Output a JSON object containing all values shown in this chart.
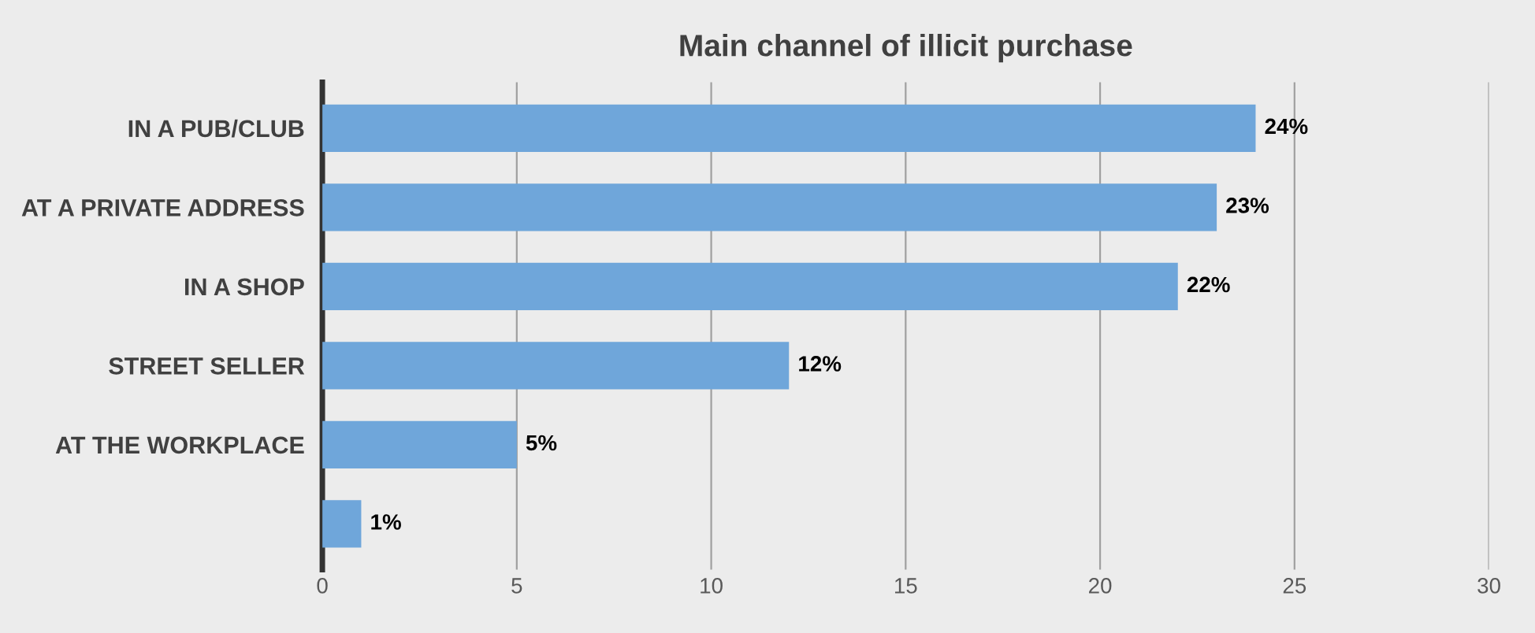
{
  "chart_data": {
    "type": "bar",
    "orientation": "horizontal",
    "title": "Main channel of illicit purchase",
    "categories": [
      "IN A PUB/CLUB",
      "AT A PRIVATE ADDRESS",
      "IN A SHOP",
      "STREET SELLER",
      "AT THE WORKPLACE",
      null
    ],
    "values": [
      24,
      23,
      22,
      12,
      5,
      1
    ],
    "value_labels": [
      "24%",
      "23%",
      "22%",
      "12%",
      "5%",
      "1%"
    ],
    "color": "#6fa6da",
    "xlim": [
      0,
      30
    ],
    "xticks": [
      0,
      5,
      10,
      15,
      20,
      25,
      30
    ],
    "grid": "x",
    "legend": false
  }
}
